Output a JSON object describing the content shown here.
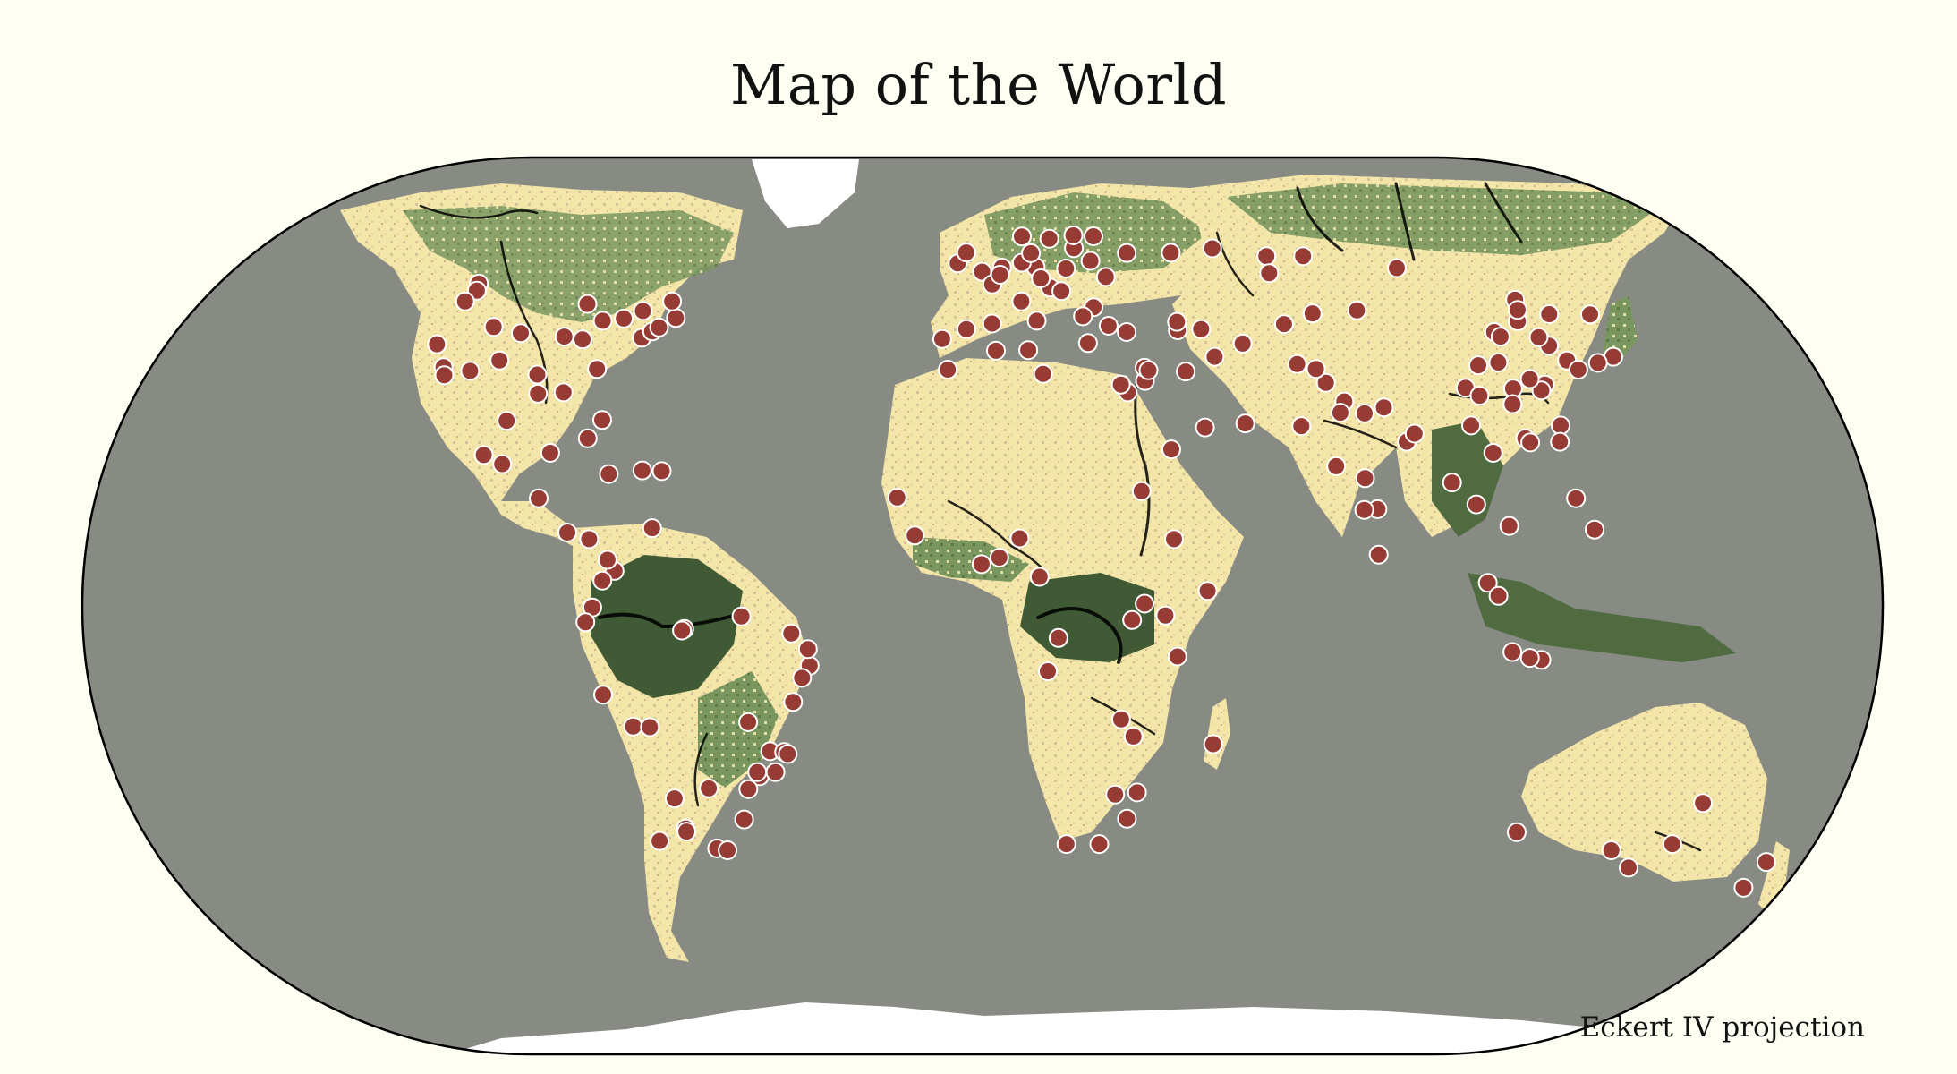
{
  "title": "Map of the World",
  "projection_label": "Eckert IV projection",
  "colors": {
    "background": "#fefef3",
    "ocean": "#878b84",
    "desert": "#f3e6a8",
    "steppe": "#e2c89a",
    "forest": "#6f8f57",
    "rainforest": "#3f5a34",
    "ice": "#ffffff",
    "river": "#000000",
    "city": "#963c35",
    "city_stroke": "#ffffff"
  },
  "cities_lonlat": [
    [
      -123,
      49
    ],
    [
      -122,
      47.6
    ],
    [
      -122.7,
      45.5
    ],
    [
      -122.4,
      37.8
    ],
    [
      -118.2,
      34
    ],
    [
      -117.2,
      32.7
    ],
    [
      -112,
      33.4
    ],
    [
      -104.9,
      39.7
    ],
    [
      -97,
      32.8
    ],
    [
      -95.4,
      29.8
    ],
    [
      -90,
      30
    ],
    [
      -87.6,
      41.9
    ],
    [
      -83,
      42.3
    ],
    [
      -84.4,
      33.7
    ],
    [
      -80.2,
      25.8
    ],
    [
      -77,
      38.9
    ],
    [
      -75.2,
      40
    ],
    [
      -74,
      40.7
    ],
    [
      -71,
      42.4
    ],
    [
      -79.4,
      43.7
    ],
    [
      -73.6,
      45.5
    ],
    [
      -93.3,
      45
    ],
    [
      -90.2,
      38.6
    ],
    [
      -94.6,
      39.1
    ],
    [
      -106.6,
      35.1
    ],
    [
      -111.9,
      40.8
    ],
    [
      -99.1,
      19.4
    ],
    [
      -103.3,
      20.7
    ],
    [
      -100.3,
      25.7
    ],
    [
      -89.6,
      21
    ],
    [
      -90.5,
      14.6
    ],
    [
      -84,
      9.9
    ],
    [
      -79.5,
      9
    ],
    [
      -82.4,
      23.1
    ],
    [
      -76.8,
      18
    ],
    [
      -70,
      18.5
    ],
    [
      -66,
      18.4
    ],
    [
      -74.1,
      4.7
    ],
    [
      -75.6,
      6.2
    ],
    [
      -76.5,
      3.4
    ],
    [
      -66.9,
      10.5
    ],
    [
      -78.5,
      -0.2
    ],
    [
      -79.9,
      -2.2
    ],
    [
      -77,
      -12
    ],
    [
      -71.5,
      -16.4
    ],
    [
      -68.1,
      -16.5
    ],
    [
      -70.6,
      -33.4
    ],
    [
      -58.4,
      -34.6
    ],
    [
      -56.2,
      -34.9
    ],
    [
      -64.2,
      -31.4
    ],
    [
      -57.6,
      -25.3
    ],
    [
      -47.9,
      -15.8
    ],
    [
      -46.6,
      -23.5
    ],
    [
      -43.2,
      -22.9
    ],
    [
      -43.9,
      -19.9
    ],
    [
      -49.3,
      -25.4
    ],
    [
      -51.2,
      -30
    ],
    [
      -38.5,
      -13
    ],
    [
      -34.9,
      -8.05
    ],
    [
      -38.5,
      -3.7
    ],
    [
      -48.5,
      -1.4
    ],
    [
      -60,
      -3.1
    ],
    [
      -60.5,
      -3.3
    ],
    [
      -0.1,
      51.5
    ],
    [
      2.35,
      48.85
    ],
    [
      -3.7,
      40.4
    ],
    [
      2.2,
      41.4
    ],
    [
      -9.1,
      38.7
    ],
    [
      12.5,
      41.9
    ],
    [
      9.2,
      45.5
    ],
    [
      13.4,
      52.5
    ],
    [
      10,
      53.5
    ],
    [
      4.9,
      52.4
    ],
    [
      4.35,
      50.85
    ],
    [
      16.4,
      48.2
    ],
    [
      14.4,
      50.1
    ],
    [
      21,
      52.2
    ],
    [
      19,
      47.5
    ],
    [
      26.1,
      44.4
    ],
    [
      23.3,
      42.7
    ],
    [
      23.7,
      38
    ],
    [
      28.9,
      41
    ],
    [
      32.8,
      39.9
    ],
    [
      30.5,
      50.4
    ],
    [
      37.6,
      55.75
    ],
    [
      30.3,
      59.95
    ],
    [
      27.6,
      53.9
    ],
    [
      24.1,
      56.9
    ],
    [
      18.1,
      59.3
    ],
    [
      10.75,
      59.9
    ],
    [
      12.6,
      55.7
    ],
    [
      24.9,
      60.2
    ],
    [
      -6.3,
      53.35
    ],
    [
      -4.25,
      55.85
    ],
    [
      35.2,
      31.8
    ],
    [
      35.5,
      33.9
    ],
    [
      36.3,
      33.5
    ],
    [
      44.4,
      33.3
    ],
    [
      51.4,
      35.7
    ],
    [
      46.7,
      24.7
    ],
    [
      39.2,
      21.5
    ],
    [
      55.3,
      25.3
    ],
    [
      31.2,
      30
    ],
    [
      29.9,
      31.2
    ],
    [
      3,
      36.7
    ],
    [
      10.2,
      36.8
    ],
    [
      -7.6,
      33.6
    ],
    [
      13.2,
      32.9
    ],
    [
      32.5,
      15.6
    ],
    [
      38.7,
      9
    ],
    [
      45.3,
      2
    ],
    [
      36.8,
      -1.3
    ],
    [
      39.3,
      -6.8
    ],
    [
      32.6,
      0.3
    ],
    [
      30.1,
      -1.9
    ],
    [
      -17.4,
      14.7
    ],
    [
      -13.7,
      9.5
    ],
    [
      -0.2,
      5.6
    ],
    [
      3.4,
      6.5
    ],
    [
      7.5,
      9.1
    ],
    [
      11.5,
      3.9
    ],
    [
      15.3,
      -4.3
    ],
    [
      13.2,
      -8.8
    ],
    [
      28.3,
      -15.4
    ],
    [
      31,
      -17.8
    ],
    [
      28,
      -26.2
    ],
    [
      31,
      -29.9
    ],
    [
      18.4,
      -33.9
    ],
    [
      25.6,
      -33.9
    ],
    [
      32.6,
      -25.9
    ],
    [
      47.5,
      -18.9
    ],
    [
      69.2,
      34.5
    ],
    [
      67,
      24.9
    ],
    [
      74.3,
      31.5
    ],
    [
      73,
      33.7
    ],
    [
      77.2,
      28.6
    ],
    [
      72.9,
      19.1
    ],
    [
      88.4,
      22.6
    ],
    [
      80.3,
      13.1
    ],
    [
      77.6,
      13
    ],
    [
      78.5,
      17.4
    ],
    [
      75.8,
      26.9
    ],
    [
      80.9,
      26.8
    ],
    [
      90.4,
      23.8
    ],
    [
      85.3,
      27.7
    ],
    [
      79.9,
      6.9
    ],
    [
      96.2,
      16.8
    ],
    [
      100.5,
      13.75
    ],
    [
      106.7,
      10.8
    ],
    [
      105.85,
      21
    ],
    [
      101.7,
      3.1
    ],
    [
      103.8,
      1.35
    ],
    [
      106.8,
      -6.2
    ],
    [
      112.75,
      -7.25
    ],
    [
      110.4,
      -7
    ],
    [
      121,
      14.6
    ],
    [
      123.9,
      10.3
    ],
    [
      116.4,
      39.9
    ],
    [
      121.5,
      31.2
    ],
    [
      113.3,
      23.1
    ],
    [
      114.1,
      22.5
    ],
    [
      104.1,
      30.7
    ],
    [
      106.5,
      29.5
    ],
    [
      114.3,
      30.6
    ],
    [
      108.9,
      34.3
    ],
    [
      117.2,
      39.1
    ],
    [
      123.4,
      41.8
    ],
    [
      126.6,
      45.8
    ],
    [
      125.3,
      43.9
    ],
    [
      120.2,
      30.3
    ],
    [
      118.8,
      32.1
    ],
    [
      113.6,
      34.75
    ],
    [
      112.9,
      28.2
    ],
    [
      102.7,
      25
    ],
    [
      87.6,
      43.8
    ],
    [
      126.9,
      37.55
    ],
    [
      129,
      35.1
    ],
    [
      125.75,
      39
    ],
    [
      139.7,
      35.7
    ],
    [
      135.5,
      34.7
    ],
    [
      130.4,
      33.6
    ],
    [
      141.35,
      43.05
    ],
    [
      121.5,
      25
    ],
    [
      120.3,
      22.6
    ],
    [
      151.2,
      -33.9
    ],
    [
      144.95,
      -37.8
    ],
    [
      153,
      -27.5
    ],
    [
      115.9,
      -32
    ],
    [
      138.6,
      -34.9
    ],
    [
      174.8,
      -36.85
    ],
    [
      174.8,
      -41.3
    ],
    [
      49.1,
      55.8
    ],
    [
      60.6,
      56.85
    ],
    [
      73.4,
      55
    ],
    [
      82.9,
      55
    ],
    [
      104.3,
      52.3
    ],
    [
      131.9,
      43.1
    ],
    [
      71.4,
      51.2
    ],
    [
      76.9,
      43.25
    ],
    [
      69.25,
      41.3
    ],
    [
      58.4,
      37.9
    ],
    [
      44.5,
      40.2
    ],
    [
      44.8,
      41.7
    ],
    [
      49.9,
      40.4
    ],
    [
      -64.2,
      -31.9
    ],
    [
      -65.2,
      -26.8
    ],
    [
      -41,
      -20
    ],
    [
      -36.5,
      -9.7
    ],
    [
      -35.2,
      -5.8
    ],
    [
      -40.3,
      -20.3
    ],
    [
      -47,
      -22.9
    ]
  ]
}
